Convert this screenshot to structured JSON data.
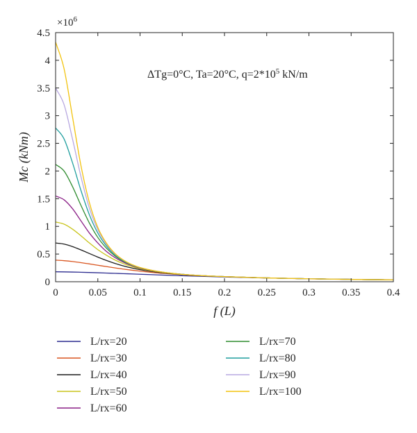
{
  "chart_data": {
    "type": "line",
    "xlabel": "f (L)",
    "ylabel": "Mc (kNm)",
    "y_multiplier": "×10^6",
    "xlim": [
      0,
      0.4
    ],
    "ylim": [
      0,
      4.5
    ],
    "xticks": [
      "0",
      "0.05",
      "0.1",
      "0.15",
      "0.2",
      "0.25",
      "0.3",
      "0.35",
      "0.4"
    ],
    "yticks": [
      "0",
      "0.5",
      "1",
      "1.5",
      "2",
      "2.5",
      "3",
      "3.5",
      "4",
      "4.5"
    ],
    "grid": false,
    "legend_placement": "bottom, two columns",
    "annotation": "ΔTg=0°C, Ta=20°C, q=2*10^5 kN/m",
    "x": [
      0,
      0.01,
      0.02,
      0.03,
      0.04,
      0.05,
      0.06,
      0.07,
      0.08,
      0.09,
      0.1,
      0.12,
      0.14,
      0.16,
      0.18,
      0.2,
      0.25,
      0.3,
      0.35,
      0.4
    ],
    "series": [
      {
        "name": "L/rx=20",
        "color": "#2b2b8f",
        "values": [
          0.18,
          0.178,
          0.175,
          0.171,
          0.167,
          0.162,
          0.157,
          0.152,
          0.146,
          0.141,
          0.135,
          0.124,
          0.113,
          0.103,
          0.094,
          0.085,
          0.067,
          0.053,
          0.043,
          0.035
        ]
      },
      {
        "name": "L/rx=30",
        "color": "#d9541e",
        "values": [
          0.39,
          0.38,
          0.365,
          0.345,
          0.322,
          0.298,
          0.274,
          0.251,
          0.229,
          0.209,
          0.191,
          0.16,
          0.136,
          0.117,
          0.102,
          0.09,
          0.067,
          0.052,
          0.042,
          0.034
        ]
      },
      {
        "name": "L/rx=40",
        "color": "#1a1a1a",
        "values": [
          0.7,
          0.68,
          0.635,
          0.575,
          0.51,
          0.445,
          0.385,
          0.332,
          0.287,
          0.249,
          0.218,
          0.172,
          0.141,
          0.119,
          0.103,
          0.091,
          0.068,
          0.053,
          0.042,
          0.034
        ]
      },
      {
        "name": "L/rx=50",
        "color": "#c8c41a",
        "values": [
          1.08,
          1.04,
          0.95,
          0.83,
          0.7,
          0.58,
          0.48,
          0.395,
          0.328,
          0.275,
          0.235,
          0.18,
          0.145,
          0.121,
          0.104,
          0.092,
          0.068,
          0.053,
          0.042,
          0.034
        ]
      },
      {
        "name": "L/rx=60",
        "color": "#8a1f86",
        "values": [
          1.55,
          1.48,
          1.32,
          1.1,
          0.88,
          0.7,
          0.55,
          0.44,
          0.355,
          0.292,
          0.245,
          0.185,
          0.147,
          0.122,
          0.105,
          0.092,
          0.068,
          0.053,
          0.042,
          0.034
        ]
      },
      {
        "name": "L/rx=70",
        "color": "#2e8b2e",
        "values": [
          2.12,
          2.0,
          1.72,
          1.38,
          1.06,
          0.8,
          0.61,
          0.47,
          0.372,
          0.302,
          0.251,
          0.187,
          0.148,
          0.122,
          0.105,
          0.092,
          0.068,
          0.053,
          0.042,
          0.034
        ]
      },
      {
        "name": "L/rx=80",
        "color": "#1f9e9e",
        "values": [
          2.78,
          2.58,
          2.15,
          1.65,
          1.21,
          0.88,
          0.65,
          0.49,
          0.383,
          0.307,
          0.254,
          0.188,
          0.148,
          0.122,
          0.105,
          0.092,
          0.068,
          0.053,
          0.042,
          0.034
        ]
      },
      {
        "name": "L/rx=90",
        "color": "#b7a7e0",
        "values": [
          3.5,
          3.2,
          2.58,
          1.9,
          1.33,
          0.94,
          0.68,
          0.505,
          0.39,
          0.31,
          0.256,
          0.189,
          0.148,
          0.122,
          0.105,
          0.092,
          0.068,
          0.053,
          0.042,
          0.034
        ]
      },
      {
        "name": "L/rx=100",
        "color": "#f2c20c",
        "values": [
          4.33,
          3.85,
          2.98,
          2.1,
          1.43,
          0.98,
          0.7,
          0.515,
          0.395,
          0.313,
          0.257,
          0.189,
          0.148,
          0.122,
          0.105,
          0.092,
          0.068,
          0.053,
          0.042,
          0.034
        ]
      }
    ]
  }
}
